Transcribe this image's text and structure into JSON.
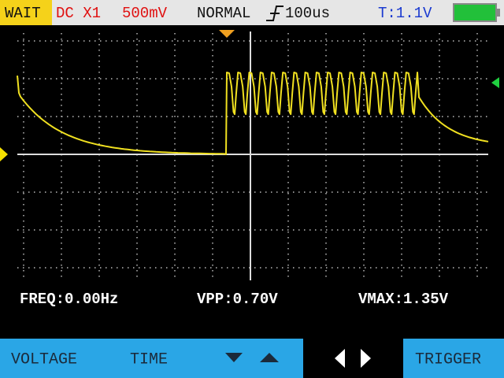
{
  "status": {
    "mode": "WAIT",
    "coupling": "DC X1",
    "volts_div": "500mV",
    "trigger_mode": "NORMAL",
    "time_div": "100us",
    "trigger_level": "T:1.1V"
  },
  "measurements": {
    "freq": "FREQ:0.00Hz",
    "vpp": "VPP:0.70V",
    "vmax": "VMAX:1.35V"
  },
  "buttons": {
    "voltage": "VOLTAGE",
    "time": "TIME",
    "trigger": "TRIGGER"
  }
}
